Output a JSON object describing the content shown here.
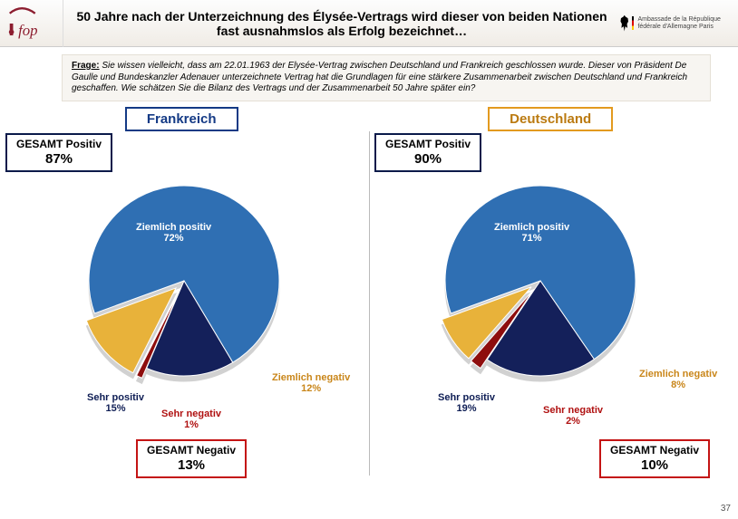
{
  "header": {
    "title": "50 Jahre nach der Unterzeichnung des Élysée-Vertrags wird dieser von beiden Nationen fast ausnahmslos als Erfolg bezeichnet…",
    "logo_ifop_color": "#8c1d2f",
    "embassy_lines": "Ambassade\nde la République fédérale d'Allemagne\nParis"
  },
  "question": {
    "lead": "Frage:",
    "text": " Sie wissen vielleicht, dass am 22.01.1963 der Elysée-Vertrag zwischen Deutschland und Frankreich geschlossen wurde. Dieser von Präsident De Gaulle und Bundeskanzler Adenauer unterzeichnete Vertrag hat die Grundlagen für eine stärkere Zusammenarbeit zwischen Deutschland und Frankreich geschaffen. Wie schätzen Sie die Bilanz des Vertrags und der Zusammenarbeit 50 Jahre später ein?"
  },
  "countries": {
    "fr": "Frankreich",
    "de": "Deutschland"
  },
  "badges": {
    "pos_label": "GESAMT Positiv",
    "neg_label": "GESAMT Negativ",
    "fr_pos": "87%",
    "fr_neg": "13%",
    "de_pos": "90%",
    "de_neg": "10%"
  },
  "colors": {
    "ziemlich_positiv": "#2f6fb3",
    "sehr_positiv": "#14205a",
    "sehr_negativ": "#8e0d0d",
    "ziemlich_negativ": "#e8b23a",
    "label_blue": "#1f4e9e",
    "label_navy": "#0f1e55",
    "label_red": "#b01111",
    "label_orange": "#c9861a"
  },
  "charts": {
    "fr": {
      "slices": [
        {
          "name": "Ziemlich positiv",
          "value": 72
        },
        {
          "name": "Sehr positiv",
          "value": 15
        },
        {
          "name": "Sehr negativ",
          "value": 1
        },
        {
          "name": "Ziemlich negativ",
          "value": 12
        }
      ],
      "labels": {
        "zp": "Ziemlich positiv",
        "zp_pct": "72%",
        "sp": "Sehr positiv",
        "sp_pct": "15%",
        "sn": "Sehr negativ",
        "sn_pct": "1%",
        "zn": "Ziemlich negativ",
        "zn_pct": "12%"
      }
    },
    "de": {
      "slices": [
        {
          "name": "Ziemlich positiv",
          "value": 71
        },
        {
          "name": "Sehr positiv",
          "value": 19
        },
        {
          "name": "Sehr negativ",
          "value": 2
        },
        {
          "name": "Ziemlich negativ",
          "value": 8
        }
      ],
      "labels": {
        "zp": "Ziemlich positiv",
        "zp_pct": "71%",
        "sp": "Sehr positiv",
        "sp_pct": "19%",
        "sn": "Sehr negativ",
        "sn_pct": "2%",
        "zn": "Ziemlich negativ",
        "zn_pct": "8%"
      }
    }
  },
  "page_no": "37"
}
